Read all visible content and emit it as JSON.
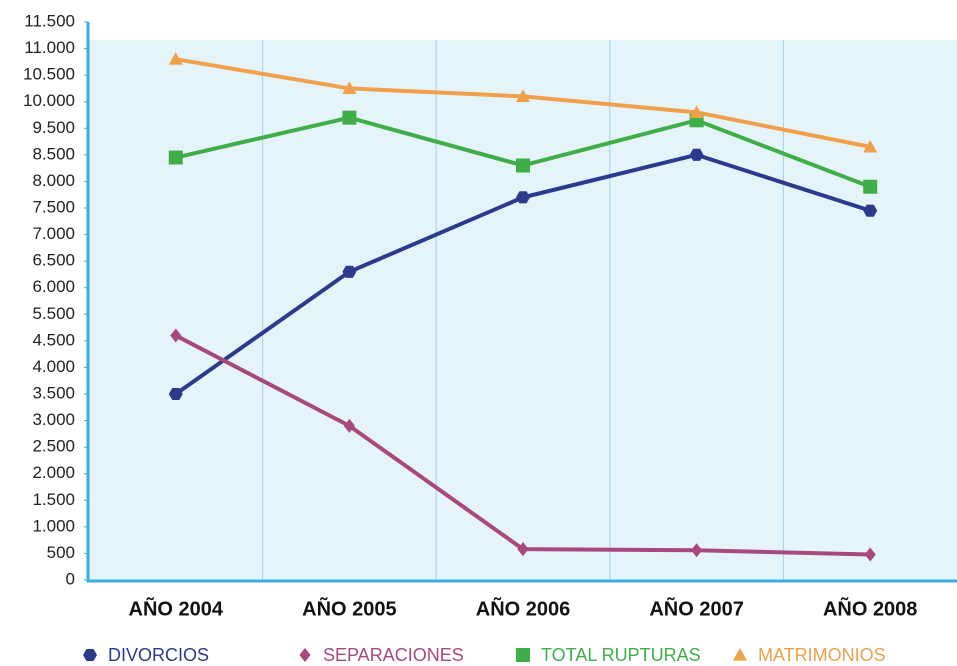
{
  "chart_data": {
    "type": "line",
    "categories": [
      "AÑO 2004",
      "AÑO 2005",
      "AÑO 2006",
      "AÑO 2007",
      "AÑO 2008"
    ],
    "series": [
      {
        "name": "DIVORCIOS",
        "color": "#2b3a8c",
        "marker": "hexagon",
        "values": [
          3500,
          6300,
          7700,
          8500,
          7450
        ]
      },
      {
        "name": "SEPARACIONES",
        "color": "#a8487e",
        "marker": "diamond",
        "values": [
          4700,
          2900,
          580,
          560,
          480
        ]
      },
      {
        "name": "TOTAL RUPTURAS",
        "color": "#3fae49",
        "marker": "square",
        "values": [
          8450,
          9700,
          8300,
          9650,
          7900
        ]
      },
      {
        "name": "MATRIMONIOS",
        "color": "#f0a04b",
        "marker": "triangle",
        "values": [
          10800,
          10250,
          10100,
          9800,
          8800
        ]
      }
    ],
    "ylim": [
      0,
      11500
    ],
    "yticks": [
      0,
      500,
      {
        "value": 1000,
        "label": "1.000"
      },
      {
        "value": 1500,
        "label": "1.500"
      },
      {
        "value": 2000,
        "label": "2.000"
      },
      {
        "value": 2500,
        "label": "2.500"
      },
      {
        "value": 3000,
        "label": "3.000"
      },
      {
        "value": 3500,
        "label": "3.500"
      },
      {
        "value": 4000,
        "label": "4.000"
      },
      {
        "value": 4500,
        "label": "4.500"
      },
      {
        "value": 5500,
        "label": "5.500"
      },
      {
        "value": 6000,
        "label": "6.000"
      },
      {
        "value": 6500,
        "label": "6.500"
      },
      {
        "value": 7000,
        "label": "7.000"
      },
      {
        "value": 7500,
        "label": "7.500"
      },
      {
        "value": 8000,
        "label": "8.000"
      },
      {
        "value": 8500,
        "label": "8.500"
      },
      {
        "value": 9500,
        "label": "9.500"
      },
      {
        "value": 10000,
        "label": "10.000"
      },
      {
        "value": 10500,
        "label": "10.500"
      },
      {
        "value": 11000,
        "label": "11.000"
      },
      {
        "value": 11500,
        "label": "11.500"
      }
    ],
    "grid": true
  }
}
